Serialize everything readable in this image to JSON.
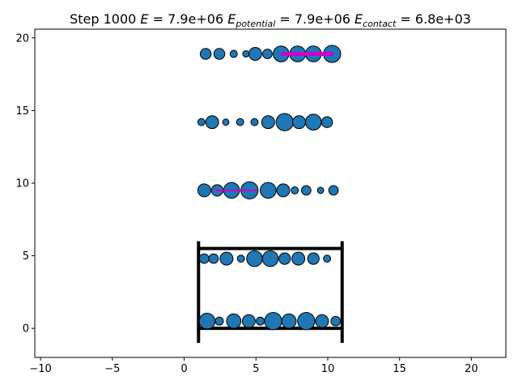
{
  "chart_data": {
    "type": "scatter",
    "title": "Step 1000 E = 7.9e+06 E_potential = 7.9e+06 E_contact = 6.8e+03",
    "title_parts": {
      "step": "Step 1000",
      "e_sym": "E",
      "e_val": "= 7.9e+06",
      "ep_sym": "E",
      "ep_sub": "potential",
      "ep_val": "= 7.9e+06",
      "ec_sym": "E",
      "ec_sub": "contact",
      "ec_val": "= 6.8e+03"
    },
    "xlim": [
      -10.4,
      22.4
    ],
    "ylim": [
      -2.0,
      20.6
    ],
    "xticks": [
      -10,
      -5,
      0,
      5,
      10,
      15,
      20
    ],
    "yticks": [
      0,
      5,
      10,
      15,
      20
    ],
    "grid": false,
    "marker_color": "#1f77b4",
    "marker_edge": "#000000",
    "bond_color": "#cc00cc",
    "wall_color": "#000000",
    "walls": {
      "left": {
        "x": 1.0,
        "y": [
          -1.0,
          6.0
        ]
      },
      "right": {
        "x": 11.0,
        "y": [
          -1.0,
          6.0
        ]
      },
      "bottom": {
        "y": 0.0,
        "x": [
          1.0,
          11.0
        ]
      },
      "top": {
        "y": 5.5,
        "x": [
          1.0,
          11.0
        ]
      }
    },
    "rows": [
      {
        "y": 0.5,
        "particles": [
          [
            1.6,
            0.55
          ],
          [
            2.45,
            0.28
          ],
          [
            3.45,
            0.5
          ],
          [
            4.5,
            0.45
          ],
          [
            5.3,
            0.28
          ],
          [
            6.2,
            0.6
          ],
          [
            7.3,
            0.5
          ],
          [
            8.5,
            0.6
          ],
          [
            9.6,
            0.45
          ],
          [
            10.55,
            0.33
          ]
        ]
      },
      {
        "y": 4.8,
        "particles": [
          [
            1.4,
            0.33
          ],
          [
            2.05,
            0.33
          ],
          [
            2.95,
            0.45
          ],
          [
            3.95,
            0.25
          ],
          [
            4.9,
            0.55
          ],
          [
            6.0,
            0.55
          ],
          [
            7.0,
            0.4
          ],
          [
            7.95,
            0.45
          ],
          [
            9.0,
            0.4
          ],
          [
            9.95,
            0.25
          ]
        ]
      },
      {
        "y": 9.5,
        "particles": [
          [
            1.4,
            0.45
          ],
          [
            2.3,
            0.4
          ],
          [
            3.3,
            0.55
          ],
          [
            4.55,
            0.6
          ],
          [
            5.85,
            0.55
          ],
          [
            6.9,
            0.45
          ],
          [
            7.7,
            0.25
          ],
          [
            8.5,
            0.33
          ],
          [
            9.5,
            0.22
          ],
          [
            10.4,
            0.33
          ]
        ]
      },
      {
        "y": 14.2,
        "particles": [
          [
            1.2,
            0.25
          ],
          [
            1.95,
            0.45
          ],
          [
            2.9,
            0.22
          ],
          [
            3.9,
            0.25
          ],
          [
            4.9,
            0.25
          ],
          [
            5.85,
            0.45
          ],
          [
            7.0,
            0.6
          ],
          [
            8.0,
            0.45
          ],
          [
            9.0,
            0.55
          ],
          [
            9.95,
            0.38
          ]
        ]
      },
      {
        "y": 18.9,
        "particles": [
          [
            1.5,
            0.38
          ],
          [
            2.45,
            0.38
          ],
          [
            3.45,
            0.25
          ],
          [
            4.3,
            0.22
          ],
          [
            4.95,
            0.45
          ],
          [
            5.8,
            0.33
          ],
          [
            6.75,
            0.55
          ],
          [
            7.9,
            0.55
          ],
          [
            9.0,
            0.55
          ],
          [
            10.3,
            0.6
          ]
        ]
      }
    ],
    "bonds": [
      {
        "y": 9.5,
        "x": [
          2.1,
          5.1
        ],
        "w": 2.0
      },
      {
        "y": 18.9,
        "x": [
          6.75,
          10.4
        ],
        "w": 5.0
      }
    ]
  }
}
